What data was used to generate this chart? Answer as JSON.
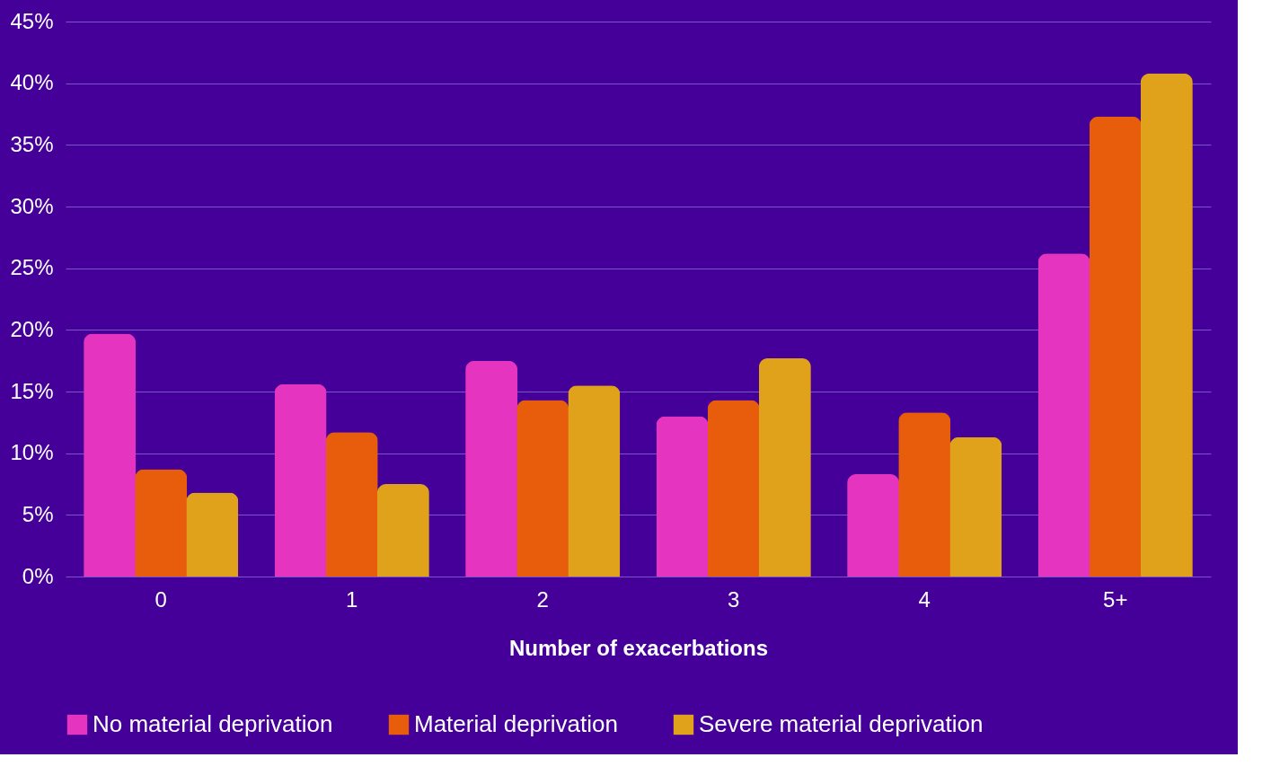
{
  "chart_data": {
    "type": "bar",
    "xlabel": "Number of exacerbations",
    "categories": [
      "0",
      "1",
      "2",
      "3",
      "4",
      "5+"
    ],
    "series": [
      {
        "name": "No material deprivation",
        "color": "#e535c0",
        "values": [
          19.7,
          15.6,
          17.5,
          13.0,
          8.3,
          26.2
        ]
      },
      {
        "name": "Material deprivation",
        "color": "#e85d0c",
        "values": [
          8.7,
          11.7,
          14.3,
          14.3,
          13.3,
          37.3
        ]
      },
      {
        "name": "Severe material deprivation",
        "color": "#e0a21a",
        "values": [
          6.8,
          7.5,
          15.5,
          17.7,
          11.3,
          40.8
        ]
      }
    ],
    "ylim": [
      0,
      45
    ],
    "yticks": [
      {
        "value": 0,
        "label": "0%"
      },
      {
        "value": 5,
        "label": "5%"
      },
      {
        "value": 10,
        "label": "10%"
      },
      {
        "value": 15,
        "label": "15%"
      },
      {
        "value": 20,
        "label": "20%"
      },
      {
        "value": 25,
        "label": "25%"
      },
      {
        "value": 30,
        "label": "30%"
      },
      {
        "value": 35,
        "label": "35%"
      },
      {
        "value": 40,
        "label": "40%"
      },
      {
        "value": 45,
        "label": "45%"
      }
    ],
    "grid": "y",
    "legend": "bottom"
  }
}
